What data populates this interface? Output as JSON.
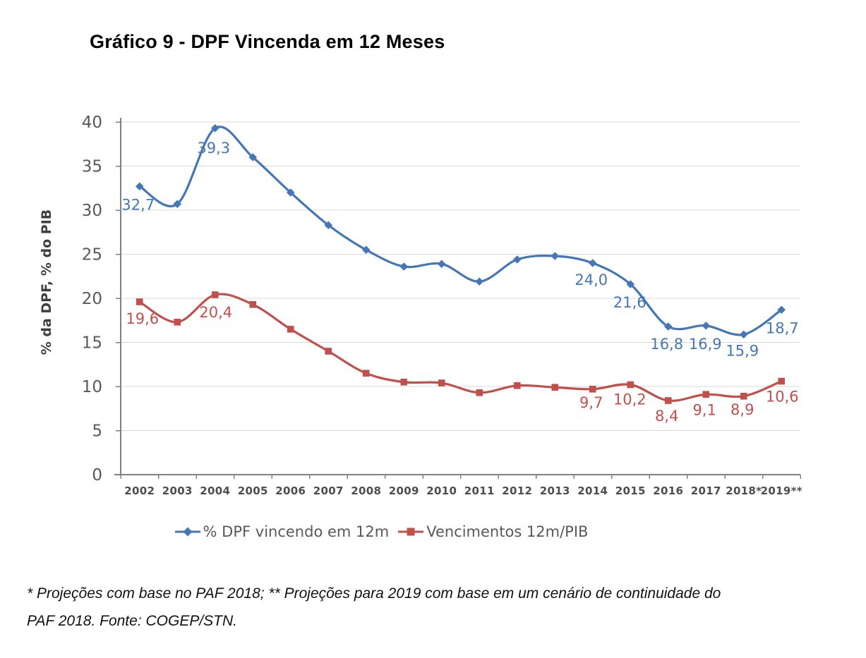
{
  "chart_data": {
    "type": "line",
    "title": "Gráfico 9 - DPF Vincenda em 12 Meses",
    "xlabel": "",
    "ylabel": "% da DPF, % do PIB",
    "ylim": [
      0,
      40
    ],
    "yticks": [
      0,
      5,
      10,
      15,
      20,
      25,
      30,
      35,
      40
    ],
    "grid": true,
    "legend_position": "bottom",
    "decimal_separator": "comma",
    "categories": [
      "2002",
      "2003",
      "2004",
      "2005",
      "2006",
      "2007",
      "2008",
      "2009",
      "2010",
      "2011",
      "2012",
      "2013",
      "2014",
      "2015",
      "2016",
      "2017",
      "2018*",
      "2019**"
    ],
    "series": [
      {
        "name": "% DPF vincendo em 12m",
        "color": "#4576B5",
        "marker": "diamond",
        "values": [
          32.7,
          30.7,
          39.3,
          36.0,
          32.0,
          28.3,
          25.5,
          23.6,
          23.9,
          21.9,
          24.4,
          24.8,
          24.0,
          21.6,
          16.8,
          16.9,
          15.9,
          18.7
        ],
        "point_labels": [
          {
            "index": 0,
            "text": "32,7",
            "dx": -2,
            "dy": 33
          },
          {
            "index": 2,
            "text": "39,3",
            "dx": -2,
            "dy": 35
          },
          {
            "index": 12,
            "text": "24,0",
            "dx": -2,
            "dy": 31
          },
          {
            "index": 13,
            "text": "21,6",
            "dx": -1,
            "dy": 33
          },
          {
            "index": 14,
            "text": "16,8",
            "dx": -2,
            "dy": 32
          },
          {
            "index": 15,
            "text": "16,9",
            "dx": -1,
            "dy": 33
          },
          {
            "index": 16,
            "text": "15,9",
            "dx": -2,
            "dy": 30
          },
          {
            "index": 17,
            "text": "18,7",
            "dx": 1,
            "dy": 33
          }
        ]
      },
      {
        "name": "Vencimentos 12m/PIB",
        "color": "#C1504D",
        "marker": "square",
        "values": [
          19.6,
          17.3,
          20.4,
          19.3,
          16.5,
          14.0,
          11.5,
          10.5,
          10.4,
          9.3,
          10.1,
          9.9,
          9.7,
          10.2,
          8.4,
          9.1,
          8.9,
          10.6
        ],
        "point_labels": [
          {
            "index": 0,
            "text": "19,6",
            "dx": 4,
            "dy": 31
          },
          {
            "index": 2,
            "text": "20,4",
            "dx": 1,
            "dy": 32
          },
          {
            "index": 12,
            "text": "9,7",
            "dx": -2,
            "dy": 26
          },
          {
            "index": 13,
            "text": "10,2",
            "dx": -1,
            "dy": 28
          },
          {
            "index": 14,
            "text": "8,4",
            "dx": -2,
            "dy": 29
          },
          {
            "index": 15,
            "text": "9,1",
            "dx": -2,
            "dy": 29
          },
          {
            "index": 16,
            "text": "8,9",
            "dx": -2,
            "dy": 26
          },
          {
            "index": 17,
            "text": "10,6",
            "dx": 1,
            "dy": 29
          }
        ]
      }
    ]
  },
  "footnote": {
    "lines": [
      "* Projeções com base no PAF 2018; ** Projeções para 2019 com base em um cenário de continuidade do",
      "PAF 2018. Fonte: COGEP/STN."
    ]
  }
}
